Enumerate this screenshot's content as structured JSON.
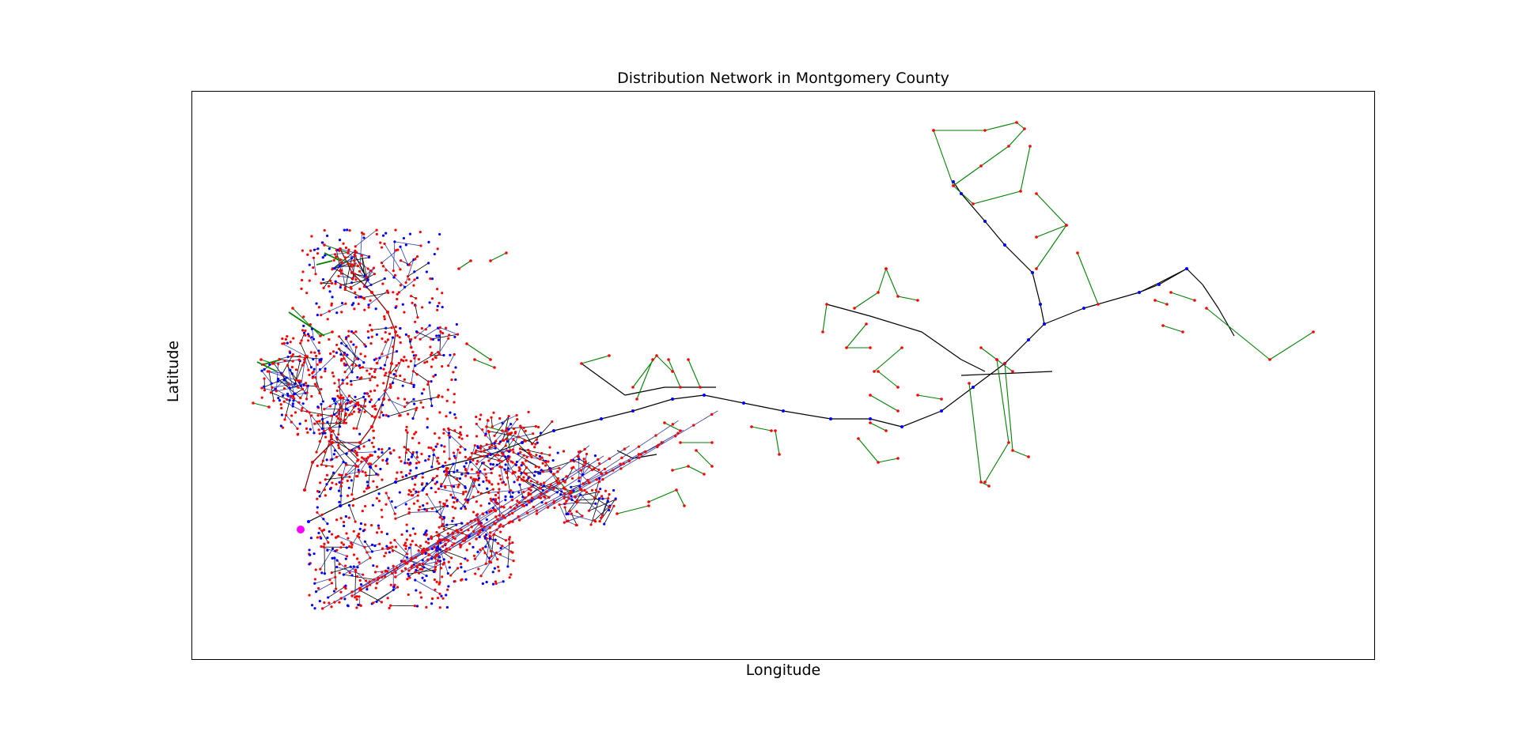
{
  "chart": {
    "title": "Distribution Network in Montgomery County",
    "xlabel": "Longitude",
    "ylabel": "Latitude"
  },
  "legend": {
    "colors": {
      "primary_line": "#000000",
      "secondary_line": "#008000",
      "node_bus": "#0000ff",
      "node_load": "#ff0000",
      "substation": "#ff00ff"
    }
  }
}
